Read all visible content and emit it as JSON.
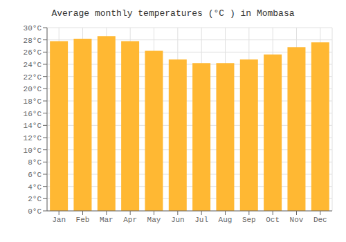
{
  "chart_data": {
    "type": "bar",
    "title": "Average monthly temperatures (°C ) in Mombasa",
    "categories": [
      "Jan",
      "Feb",
      "Mar",
      "Apr",
      "May",
      "Jun",
      "Jul",
      "Aug",
      "Sep",
      "Oct",
      "Nov",
      "Dec"
    ],
    "values": [
      27.8,
      28.2,
      28.6,
      27.8,
      26.2,
      24.8,
      24.2,
      24.2,
      24.8,
      25.6,
      26.8,
      27.6
    ],
    "color": "#FFB833",
    "ylim": [
      0,
      30
    ],
    "yticks": [
      {
        "value": 0,
        "label": "0°C"
      },
      {
        "value": 2,
        "label": "2°C"
      },
      {
        "value": 4,
        "label": "4°C"
      },
      {
        "value": 6,
        "label": "6°C"
      },
      {
        "value": 8,
        "label": "8°C"
      },
      {
        "value": 10,
        "label": "10°C"
      },
      {
        "value": 12,
        "label": "12°C"
      },
      {
        "value": 14,
        "label": "14°C"
      },
      {
        "value": 16,
        "label": "16°C"
      },
      {
        "value": 18,
        "label": "18°C"
      },
      {
        "value": 20,
        "label": "20°C"
      },
      {
        "value": 22,
        "label": "22°C"
      },
      {
        "value": 24,
        "label": "24°C"
      },
      {
        "value": 26,
        "label": "26°C"
      },
      {
        "value": 28,
        "label": "28°C"
      },
      {
        "value": 30,
        "label": "30°C"
      }
    ],
    "grid": true
  }
}
